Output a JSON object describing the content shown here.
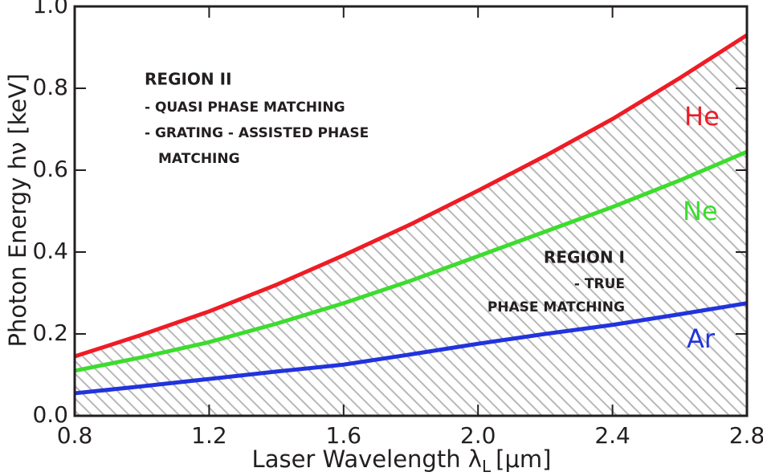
{
  "chart_data": {
    "type": "line",
    "ylabel": "Photon Energy hν [keV]",
    "xlabel": {
      "main": "Laser Wavelength λ",
      "sub": "L",
      "unit": "[μm]"
    },
    "x": [
      0.8,
      1.0,
      1.2,
      1.4,
      1.6,
      1.8,
      2.0,
      2.2,
      2.4,
      2.6,
      2.8
    ],
    "series": [
      {
        "name": "He",
        "color": "#ee1c25",
        "values": [
          0.145,
          0.198,
          0.255,
          0.32,
          0.392,
          0.468,
          0.55,
          0.635,
          0.725,
          0.825,
          0.93
        ]
      },
      {
        "name": "Ne",
        "color": "#3ddc2e",
        "values": [
          0.11,
          0.143,
          0.18,
          0.225,
          0.275,
          0.33,
          0.39,
          0.45,
          0.51,
          0.575,
          0.645
        ]
      },
      {
        "name": "Ar",
        "color": "#2233dd",
        "values": [
          0.055,
          0.072,
          0.09,
          0.108,
          0.125,
          0.15,
          0.176,
          0.2,
          0.222,
          0.248,
          0.275
        ]
      }
    ],
    "annotations": [
      "REGION II",
      "- QUASI PHASE MATCHING",
      "- GRATING - ASSISTED PHASE",
      "MATCHING",
      "REGION I",
      "- TRUE",
      "PHASE MATCHING"
    ],
    "xlim": [
      0.8,
      2.8
    ],
    "xticks": [
      0.8,
      1.2,
      1.6,
      {
        "value": 2,
        "label": "2.0"
      },
      2.4,
      2.8
    ],
    "ylim": [
      0,
      1
    ],
    "yticks": [
      {
        "value": 0,
        "label": "0.0"
      },
      0.2,
      0.4,
      0.6,
      0.8,
      {
        "value": 1,
        "label": "1.0"
      }
    ],
    "hatch_color": "#b8b8b8"
  }
}
